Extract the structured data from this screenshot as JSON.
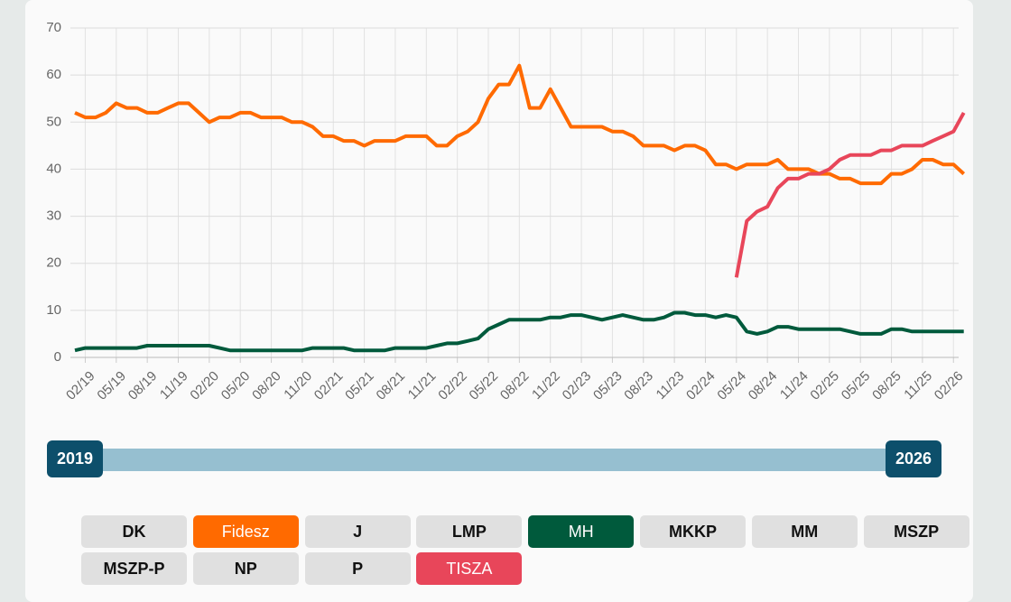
{
  "chart_data": {
    "type": "line",
    "categories": [
      null,
      "02/19",
      null,
      null,
      "05/19",
      null,
      null,
      "08/19",
      null,
      null,
      "11/19",
      null,
      null,
      "02/20",
      null,
      null,
      "05/20",
      null,
      null,
      "08/20",
      null,
      null,
      "11/20",
      null,
      null,
      "02/21",
      null,
      null,
      "05/21",
      null,
      null,
      "08/21",
      null,
      null,
      "11/21",
      null,
      null,
      "02/22",
      null,
      null,
      "05/22",
      null,
      null,
      "08/22",
      null,
      null,
      "11/22",
      null,
      null,
      "02/23",
      null,
      null,
      "05/23",
      null,
      null,
      "08/23",
      null,
      null,
      "11/23",
      null,
      null,
      "02/24",
      null,
      null,
      "05/24",
      null,
      null,
      "08/24",
      null,
      null,
      "11/24",
      null,
      null,
      "02/25",
      null,
      null,
      "05/25",
      null,
      null,
      "08/25",
      null,
      null,
      "11/25",
      null,
      null,
      "02/26",
      null
    ],
    "series": [
      {
        "name": "Fidesz",
        "color": "#ff6a00",
        "values": [
          52,
          51,
          51,
          52,
          54,
          53,
          53,
          52,
          52,
          53,
          54,
          54,
          52,
          50,
          51,
          51,
          52,
          52,
          51,
          51,
          51,
          50,
          50,
          49,
          47,
          47,
          46,
          46,
          45,
          46,
          46,
          46,
          47,
          47,
          47,
          45,
          45,
          47,
          48,
          50,
          55,
          58,
          58,
          62,
          53,
          53,
          57,
          53,
          49,
          49,
          49,
          49,
          48,
          48,
          47,
          45,
          45,
          45,
          44,
          45,
          45,
          44,
          41,
          41,
          40,
          41,
          41,
          41,
          42,
          40,
          40,
          40,
          39,
          39,
          38,
          38,
          37,
          37,
          37,
          39,
          39,
          40,
          42,
          42,
          41,
          41,
          39
        ]
      },
      {
        "name": "MH",
        "color": "#005a3c",
        "values": [
          1.5,
          2,
          2,
          2,
          2,
          2,
          2,
          2.5,
          2.5,
          2.5,
          2.5,
          2.5,
          2.5,
          2.5,
          2,
          1.5,
          1.5,
          1.5,
          1.5,
          1.5,
          1.5,
          1.5,
          1.5,
          2,
          2,
          2,
          2,
          1.5,
          1.5,
          1.5,
          1.5,
          2,
          2,
          2,
          2,
          2.5,
          3,
          3,
          3.5,
          4,
          6,
          7,
          8,
          8,
          8,
          8,
          8.5,
          8.5,
          9,
          9,
          8.5,
          8,
          8.5,
          9,
          8.5,
          8,
          8,
          8.5,
          9.5,
          9.5,
          9,
          9,
          8.5,
          9,
          8.5,
          5.5,
          5,
          5.5,
          6.5,
          6.5,
          6,
          6,
          6,
          6,
          6,
          5.5,
          5,
          5,
          5,
          6,
          6,
          5.5,
          5.5,
          5.5,
          5.5,
          5.5,
          5.5
        ]
      },
      {
        "name": "TISZA",
        "color": "#e8465a",
        "values": [
          null,
          null,
          null,
          null,
          null,
          null,
          null,
          null,
          null,
          null,
          null,
          null,
          null,
          null,
          null,
          null,
          null,
          null,
          null,
          null,
          null,
          null,
          null,
          null,
          null,
          null,
          null,
          null,
          null,
          null,
          null,
          null,
          null,
          null,
          null,
          null,
          null,
          null,
          null,
          null,
          null,
          null,
          null,
          null,
          null,
          null,
          null,
          null,
          null,
          null,
          null,
          null,
          null,
          null,
          null,
          null,
          null,
          null,
          null,
          null,
          null,
          null,
          null,
          null,
          17,
          29,
          31,
          32,
          36,
          38,
          38,
          39,
          39,
          40,
          42,
          43,
          43,
          43,
          44,
          44,
          45,
          45,
          45,
          46,
          47,
          48,
          52
        ]
      }
    ],
    "ylim": [
      0,
      70
    ],
    "yticks": [
      0,
      10,
      20,
      30,
      40,
      50,
      60,
      70
    ],
    "grid": true
  },
  "range": {
    "start": "2019",
    "end": "2026"
  },
  "parties": [
    {
      "name": "DK",
      "active": false
    },
    {
      "name": "Fidesz",
      "active": true,
      "color": "#ff6a00"
    },
    {
      "name": "J",
      "active": false
    },
    {
      "name": "LMP",
      "active": false
    },
    {
      "name": "MH",
      "active": true,
      "color": "#005a3c"
    },
    {
      "name": "MKKP",
      "active": false
    },
    {
      "name": "MM",
      "active": false
    },
    {
      "name": "MSZP",
      "active": false
    },
    {
      "name": "MSZP-P",
      "active": false
    },
    {
      "name": "NP",
      "active": false
    },
    {
      "name": "P",
      "active": false
    },
    {
      "name": "TISZA",
      "active": true,
      "color": "#e8465a"
    }
  ]
}
